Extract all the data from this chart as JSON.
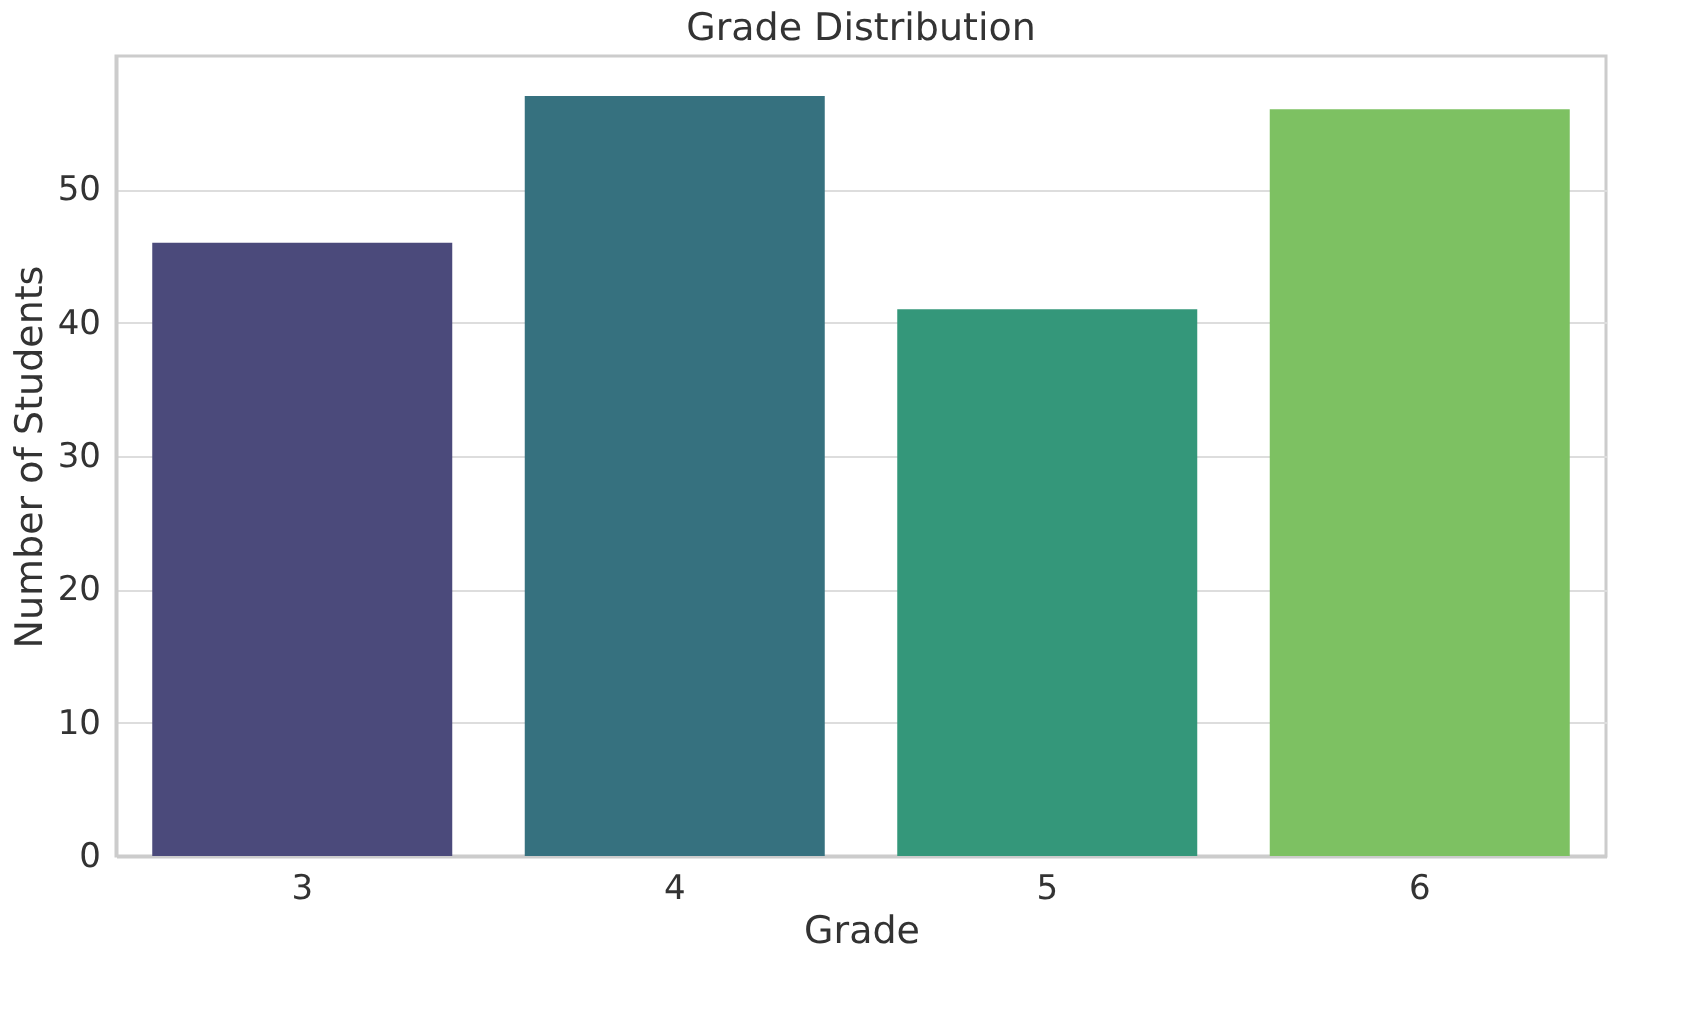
{
  "chart_data": {
    "type": "bar",
    "title": "Grade Distribution",
    "xlabel": "Grade",
    "ylabel": "Number of Students",
    "categories": [
      "3",
      "4",
      "5",
      "6"
    ],
    "values": [
      46,
      57,
      41,
      56
    ],
    "colors": [
      "#4b4a7b",
      "#36717f",
      "#34977a",
      "#7dc162"
    ],
    "ylim": [
      0,
      60
    ],
    "yticks": [
      0,
      10,
      20,
      30,
      40,
      50
    ],
    "grid": "y",
    "legend": false
  }
}
